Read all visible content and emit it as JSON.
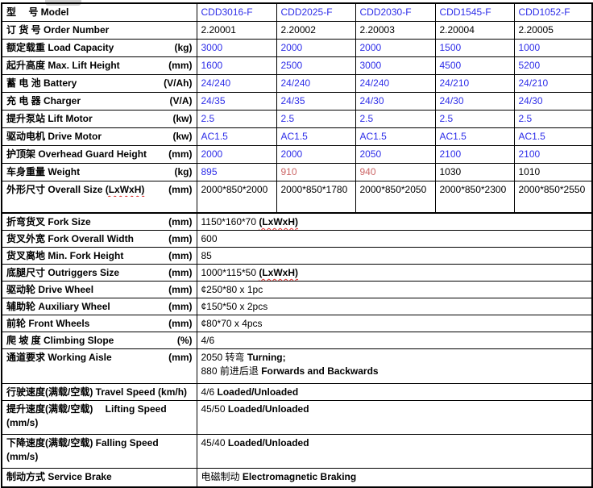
{
  "palette": {
    "blue": "#2d2de8",
    "red": "#cc6666",
    "black": "#000000",
    "border": "#000000",
    "squiggle": "#e03030"
  },
  "table": {
    "section1": [
      {
        "label": [
          {
            "t": "型　 号 Model"
          }
        ],
        "unit": "",
        "values": [
          "CDD3016-F",
          "CDD2025-F",
          "CDD2030-F",
          "CDD1545-F",
          "CDD1052-F"
        ],
        "colors": [
          "blue",
          "blue",
          "blue",
          "blue",
          "blue"
        ]
      },
      {
        "label": [
          {
            "t": "订 货 号 Order Number"
          }
        ],
        "unit": "",
        "values": [
          "2.20001",
          "2.20002",
          "2.20003",
          "2.20004",
          "2.20005"
        ],
        "colors": [
          "black",
          "black",
          "black",
          "black",
          "black"
        ]
      },
      {
        "label": [
          {
            "t": "额定载重 Load Capacity"
          }
        ],
        "unit": "(kg)",
        "values": [
          "3000",
          "2000",
          "2000",
          "1500",
          "1000"
        ],
        "colors": [
          "blue",
          "blue",
          "blue",
          "blue",
          "blue"
        ]
      },
      {
        "label": [
          {
            "t": "起升高度 Max. Lift Height"
          }
        ],
        "unit": "(mm)",
        "values": [
          "1600",
          "2500",
          "3000",
          "4500",
          "5200"
        ],
        "colors": [
          "blue",
          "blue",
          "blue",
          "blue",
          "blue"
        ]
      },
      {
        "label": [
          {
            "t": "蓄 电 池 Battery"
          }
        ],
        "unit": "(V/Ah)",
        "values": [
          "24/240",
          "24/240",
          "24/240",
          "24/210",
          "24/210"
        ],
        "colors": [
          "blue",
          "blue",
          "blue",
          "blue",
          "blue"
        ]
      },
      {
        "label": [
          {
            "t": "充 电 器 Charger"
          }
        ],
        "unit": "(V/A)",
        "values": [
          "24/35",
          "24/35",
          "24/30",
          "24/30",
          "24/30"
        ],
        "colors": [
          "blue",
          "blue",
          "blue",
          "blue",
          "blue"
        ]
      },
      {
        "label": [
          {
            "t": "提升泵站 Lift Motor"
          }
        ],
        "unit": "(kw)",
        "values": [
          "2.5",
          "2.5",
          "2.5",
          "2.5",
          "2.5"
        ],
        "colors": [
          "blue",
          "blue",
          "blue",
          "blue",
          "blue"
        ]
      },
      {
        "label": [
          {
            "t": "驱动电机 Drive Motor"
          }
        ],
        "unit": "(kw)",
        "values": [
          "AC1.5",
          "AC1.5",
          "AC1.5",
          "AC1.5",
          "AC1.5"
        ],
        "colors": [
          "blue",
          "blue",
          "blue",
          "blue",
          "blue"
        ]
      },
      {
        "label": [
          {
            "t": "护顶架 Overhead Guard Height"
          }
        ],
        "unit": "(mm)",
        "values": [
          "2000",
          "2000",
          "2050",
          "2100",
          "2100"
        ],
        "colors": [
          "blue",
          "blue",
          "blue",
          "blue",
          "blue"
        ]
      },
      {
        "label": [
          {
            "t": "车身重量 Weight"
          }
        ],
        "unit": "(kg)",
        "values": [
          "895",
          "910",
          "940",
          "1030",
          "1010"
        ],
        "colors": [
          "blue",
          "red",
          "red",
          "black",
          "black"
        ]
      },
      {
        "label": [
          {
            "t": "外形尺寸 Overall Size "
          },
          {
            "t": "(LxWxH)",
            "sq": true
          }
        ],
        "unit": "(mm)",
        "values": [
          "2000*850*2000",
          "2000*850*1780",
          "2000*850*2050",
          "2000*850*2300",
          "2000*850*2550"
        ],
        "colors": [
          "black",
          "black",
          "black",
          "black",
          "black"
        ]
      }
    ],
    "section2": [
      {
        "label": [
          {
            "t": "折弯货叉 Fork Size"
          }
        ],
        "unit": "(mm)",
        "value": [
          {
            "t": "1150*160*70 "
          },
          {
            "t": "(LxWxH)",
            "b": true,
            "sq": true
          }
        ]
      },
      {
        "label": [
          {
            "t": "货叉外宽 Fork Overall Width"
          }
        ],
        "unit": "(mm)",
        "value": [
          {
            "t": "600"
          }
        ]
      },
      {
        "label": [
          {
            "t": "货叉离地 Min. Fork Height"
          }
        ],
        "unit": "(mm)",
        "value": [
          {
            "t": "85"
          }
        ]
      },
      {
        "label": [
          {
            "t": "底腿尺寸 Outriggers Size"
          }
        ],
        "unit": "(mm)",
        "value": [
          {
            "t": "1000*115*50 "
          },
          {
            "t": "(LxWxH)",
            "b": true,
            "sq": true
          }
        ]
      },
      {
        "label": [
          {
            "t": "驱动轮 Drive Wheel"
          }
        ],
        "unit": "(mm)",
        "value": [
          {
            "t": "¢250*80 x 1pc"
          }
        ]
      },
      {
        "label": [
          {
            "t": "辅助轮 Auxiliary Wheel"
          }
        ],
        "unit": "(mm)",
        "value": [
          {
            "t": "¢150*50 x 2pcs"
          }
        ]
      },
      {
        "label": [
          {
            "t": "前轮 Front Wheels"
          }
        ],
        "unit": "(mm)",
        "value": [
          {
            "t": "¢80*70 x 4pcs"
          }
        ]
      },
      {
        "label": [
          {
            "t": "爬 坡 度 Climbing Slope"
          }
        ],
        "unit": "(%)",
        "value": [
          {
            "t": "4/6"
          }
        ]
      },
      {
        "label": [
          {
            "t": "通道要求 Working Aisle"
          }
        ],
        "unit": "(mm)",
        "value": [
          {
            "t": "2050 转弯 "
          },
          {
            "t": "Turning;",
            "b": true
          },
          {
            "br": true
          },
          {
            "t": "880 前进后退 "
          },
          {
            "t": "Forwards and Backwards",
            "b": true
          }
        ]
      },
      {
        "label": [
          {
            "t": "行驶速度(满载/空载) Travel Speed (km/h)"
          }
        ],
        "unit": "",
        "value": [
          {
            "t": "4/6 "
          },
          {
            "t": "Loaded/Unloaded",
            "b": true
          }
        ]
      },
      {
        "label": [
          {
            "t": "提升速度(满载/空载)　 Lifting Speed"
          }
        ],
        "unit": "(mm/s)",
        "unit_break": true,
        "value": [
          {
            "t": "45/50 "
          },
          {
            "t": "Loaded/Unloaded",
            "b": true
          }
        ]
      },
      {
        "label": [
          {
            "t": "下降速度(满载/空载) Falling Speed"
          }
        ],
        "unit": "(mm/s)",
        "unit_break": true,
        "value": [
          {
            "t": "45/40 "
          },
          {
            "t": "Loaded/Unloaded",
            "b": true
          }
        ]
      },
      {
        "label": [
          {
            "t": "制动方式 Service Brake"
          }
        ],
        "unit": "",
        "value": [
          {
            "t": "电磁制动 "
          },
          {
            "t": "Electromagnetic Braking",
            "b": true
          }
        ]
      }
    ]
  }
}
